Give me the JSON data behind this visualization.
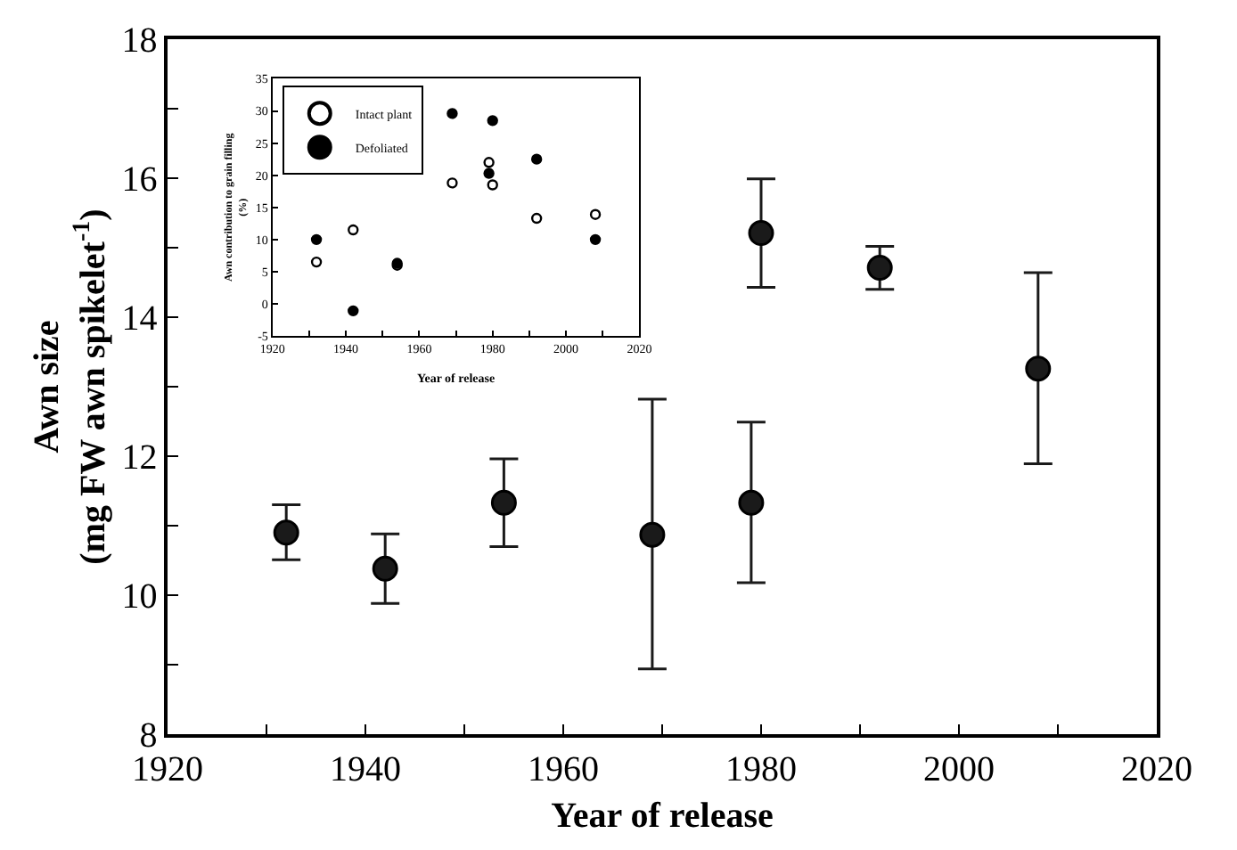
{
  "chart_data": [
    {
      "type": "scatter",
      "xlabel": "Year of release",
      "ylabel": "Awn size\n(mg FW awn spikelet$^{-1}$)",
      "marker": "circle",
      "legend": false,
      "x": [
        1932,
        1942,
        1954,
        1969,
        1979,
        1980,
        1992,
        2008
      ],
      "series": [
        {
          "color": "#1a1a1a",
          "values": [
            10.9,
            10.38,
            11.33,
            10.87,
            11.33,
            15.21,
            14.71,
            13.26
          ],
          "errors": [
            [
              10.51,
              11.3
            ],
            [
              9.88,
              10.88
            ],
            [
              10.7,
              11.96
            ],
            [
              8.94,
              12.82
            ],
            [
              10.18,
              12.49
            ],
            [
              14.43,
              15.99
            ],
            [
              14.4,
              15.02
            ],
            [
              11.89,
              14.64
            ]
          ]
        }
      ],
      "xlim": [
        1920,
        2020
      ],
      "ylim": [
        8,
        18
      ],
      "xticks": [
        1920,
        {
          "value": 1930,
          "label": null
        },
        1940,
        {
          "value": 1950,
          "label": null
        },
        1960,
        {
          "value": 1970,
          "label": null
        },
        1980,
        {
          "value": 1990,
          "label": null
        },
        2000,
        {
          "value": 2010,
          "label": null
        },
        2020
      ],
      "yticks": [
        8,
        {
          "value": 9,
          "label": null
        },
        10,
        {
          "value": 11,
          "label": null
        },
        12,
        {
          "value": 13,
          "label": null
        },
        14,
        {
          "value": 15,
          "label": null
        },
        16,
        {
          "value": 17,
          "label": null
        },
        18
      ]
    },
    {
      "type": "scatter",
      "xlabel": "Year of release",
      "ylabel": "Awn contribution to grain filling\n(%)",
      "marker": "circle",
      "legend": "top left",
      "series": [
        {
          "name": "Intact plant",
          "color": "#ffffff",
          "x": [
            1932,
            1942,
            1954,
            1969,
            1979,
            1980,
            1992,
            2008
          ],
          "values": [
            6.5,
            11.5,
            6.0,
            18.8,
            22.0,
            18.5,
            13.3,
            13.9
          ]
        },
        {
          "name": "Defoliated",
          "color": "#000000",
          "x": [
            1932,
            1942,
            1954,
            1969,
            1979,
            1980,
            1992,
            2008
          ],
          "values": [
            10.0,
            -1.1,
            6.3,
            29.6,
            20.3,
            28.5,
            22.5,
            10.0
          ]
        }
      ],
      "xlim": [
        1920,
        2020
      ],
      "ylim": [
        -5,
        35
      ],
      "xticks": [
        1920,
        {
          "value": 1930,
          "label": null
        },
        1940,
        {
          "value": 1950,
          "label": null
        },
        1960,
        {
          "value": 1970,
          "label": null
        },
        1980,
        {
          "value": 1990,
          "label": null
        },
        2000,
        {
          "value": 2010,
          "label": null
        },
        2020
      ],
      "yticks": [
        -5,
        0,
        5,
        10,
        15,
        20,
        25,
        30,
        35
      ]
    }
  ]
}
